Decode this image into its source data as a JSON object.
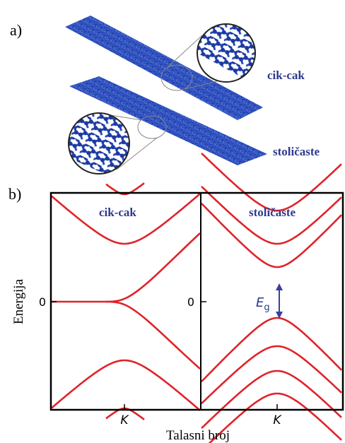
{
  "panel_a": {
    "label": "a)",
    "ribbons": [
      "cik-cak",
      "stoličaste"
    ]
  },
  "panel_b": {
    "label": "b)",
    "y_axis_label": "Energija",
    "x_axis_label": "Talasni broj",
    "plots": [
      {
        "title": "cik-cak",
        "zero_label": "0",
        "k_label": "K"
      },
      {
        "title": "stoličaste",
        "zero_label": "0",
        "k_label": "K",
        "gap_label": {
          "symbol": "E",
          "subscript": "g"
        }
      }
    ]
  }
}
